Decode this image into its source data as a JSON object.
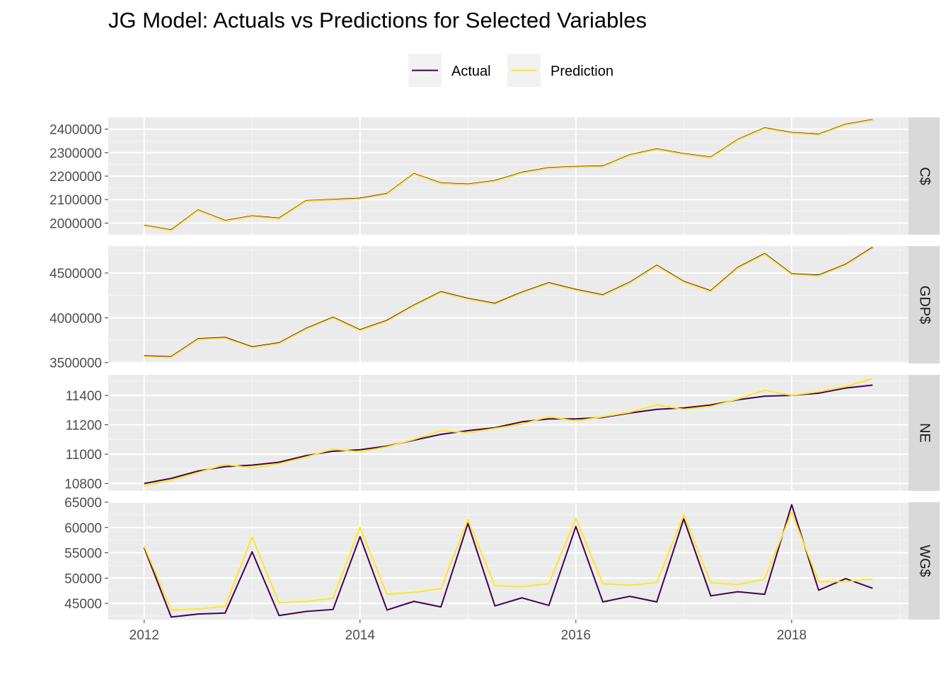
{
  "chart_data": {
    "type": "line",
    "title": "JG Model: Actuals vs Predictions for Selected Variables",
    "xlabel": "",
    "ylabel": "",
    "x_ticks": [
      "2012",
      "2014",
      "2016",
      "2018"
    ],
    "x_tick_values": [
      2012,
      2014,
      2016,
      2018
    ],
    "xlim": [
      2011.667,
      2019.083
    ],
    "grid": true,
    "legend_position": "top",
    "legend": [
      {
        "name": "Actual",
        "color": "#440154"
      },
      {
        "name": "Prediction",
        "color": "#FDE725"
      }
    ],
    "x": [
      2012.0,
      2012.25,
      2012.5,
      2012.75,
      2013.0,
      2013.25,
      2013.5,
      2013.75,
      2014.0,
      2014.25,
      2014.5,
      2014.75,
      2015.0,
      2015.25,
      2015.5,
      2015.75,
      2016.0,
      2016.25,
      2016.5,
      2016.75,
      2017.0,
      2017.25,
      2017.5,
      2017.75,
      2018.0,
      2018.25,
      2018.5,
      2018.75
    ],
    "panels": [
      {
        "label": "C$",
        "ylim": [
          1950000,
          2450000
        ],
        "y_ticks": [
          2000000,
          2100000,
          2200000,
          2300000,
          2400000
        ],
        "y_tick_labels": [
          "2000000",
          "2100000",
          "2200000",
          "2300000",
          "2400000"
        ],
        "series": [
          {
            "name": "Actual",
            "values": [
              1990000,
              1970000,
              2055000,
              2010000,
              2030000,
              2020000,
              2095000,
              2100000,
              2105000,
              2125000,
              2210000,
              2170000,
              2165000,
              2180000,
              2215000,
              2235000,
              2240000,
              2242000,
              2290000,
              2315000,
              2295000,
              2280000,
              2355000,
              2405000,
              2385000,
              2378000,
              2420000,
              2440000
            ]
          },
          {
            "name": "Prediction",
            "values": [
              1988000,
              1968000,
              2053000,
              2008000,
              2028000,
              2018000,
              2093000,
              2098000,
              2103000,
              2123000,
              2208000,
              2168000,
              2163000,
              2178000,
              2213000,
              2233000,
              2238000,
              2240000,
              2288000,
              2313000,
              2293000,
              2278000,
              2353000,
              2403000,
              2383000,
              2376000,
              2418000,
              2438000
            ]
          }
        ]
      },
      {
        "label": "GDP$",
        "ylim": [
          3490000,
          4800000
        ],
        "y_ticks": [
          3500000,
          4000000,
          4500000
        ],
        "y_tick_labels": [
          "3500000",
          "4000000",
          "4500000"
        ],
        "series": [
          {
            "name": "Actual",
            "values": [
              3575000,
              3565000,
              3765000,
              3780000,
              3675000,
              3720000,
              3880000,
              4005000,
              3865000,
              3970000,
              4140000,
              4290000,
              4215000,
              4160000,
              4285000,
              4390000,
              4315000,
              4255000,
              4395000,
              4585000,
              4405000,
              4300000,
              4560000,
              4715000,
              4490000,
              4475000,
              4595000,
              4785000
            ]
          },
          {
            "name": "Prediction",
            "values": [
              3568000,
              3558000,
              3758000,
              3773000,
              3668000,
              3713000,
              3873000,
              3998000,
              3858000,
              3963000,
              4133000,
              4283000,
              4208000,
              4153000,
              4278000,
              4383000,
              4308000,
              4248000,
              4388000,
              4578000,
              4398000,
              4293000,
              4553000,
              4708000,
              4483000,
              4468000,
              4588000,
              4778000
            ]
          }
        ]
      },
      {
        "label": "NE",
        "ylim": [
          10750,
          11540
        ],
        "y_ticks": [
          10800,
          11000,
          11200,
          11400
        ],
        "y_tick_labels": [
          "10800",
          "11000",
          "11200",
          "11400"
        ],
        "series": [
          {
            "name": "Actual",
            "values": [
              10800,
              10835,
              10885,
              10915,
              10925,
              10945,
              10990,
              11020,
              11030,
              11055,
              11095,
              11135,
              11160,
              11180,
              11220,
              11240,
              11240,
              11250,
              11280,
              11305,
              11315,
              11335,
              11370,
              11395,
              11400,
              11415,
              11450,
              11470
            ]
          },
          {
            "name": "Prediction",
            "values": [
              10785,
              10820,
              10875,
              10930,
              10905,
              10935,
              10980,
              11035,
              11015,
              11050,
              11100,
              11160,
              11145,
              11175,
              11205,
              11255,
              11225,
              11255,
              11285,
              11335,
              11305,
              11325,
              11375,
              11435,
              11400,
              11425,
              11460,
              11515
            ]
          }
        ]
      },
      {
        "label": "WG$",
        "ylim": [
          41800,
          65000
        ],
        "y_ticks": [
          45000,
          50000,
          55000,
          60000,
          65000
        ],
        "y_tick_labels": [
          "45000",
          "50000",
          "55000",
          "60000",
          "65000"
        ],
        "series": [
          {
            "name": "Actual",
            "values": [
              56000,
              42300,
              42900,
              43100,
              55200,
              42600,
              43400,
              43800,
              58200,
              43700,
              45400,
              44300,
              60800,
              44500,
              46100,
              44600,
              60200,
              45300,
              46400,
              45300,
              61700,
              46500,
              47300,
              46800,
              64500,
              47600,
              49900,
              48000
            ]
          },
          {
            "name": "Prediction",
            "values": [
              56300,
              43700,
              43900,
              44400,
              58100,
              45100,
              45400,
              46000,
              60000,
              46800,
              47200,
              47900,
              61500,
              48500,
              48300,
              48900,
              61800,
              48900,
              48600,
              49100,
              62500,
              49100,
              48700,
              49800,
              63000,
              49300,
              49300,
              49800
            ]
          }
        ]
      }
    ]
  }
}
